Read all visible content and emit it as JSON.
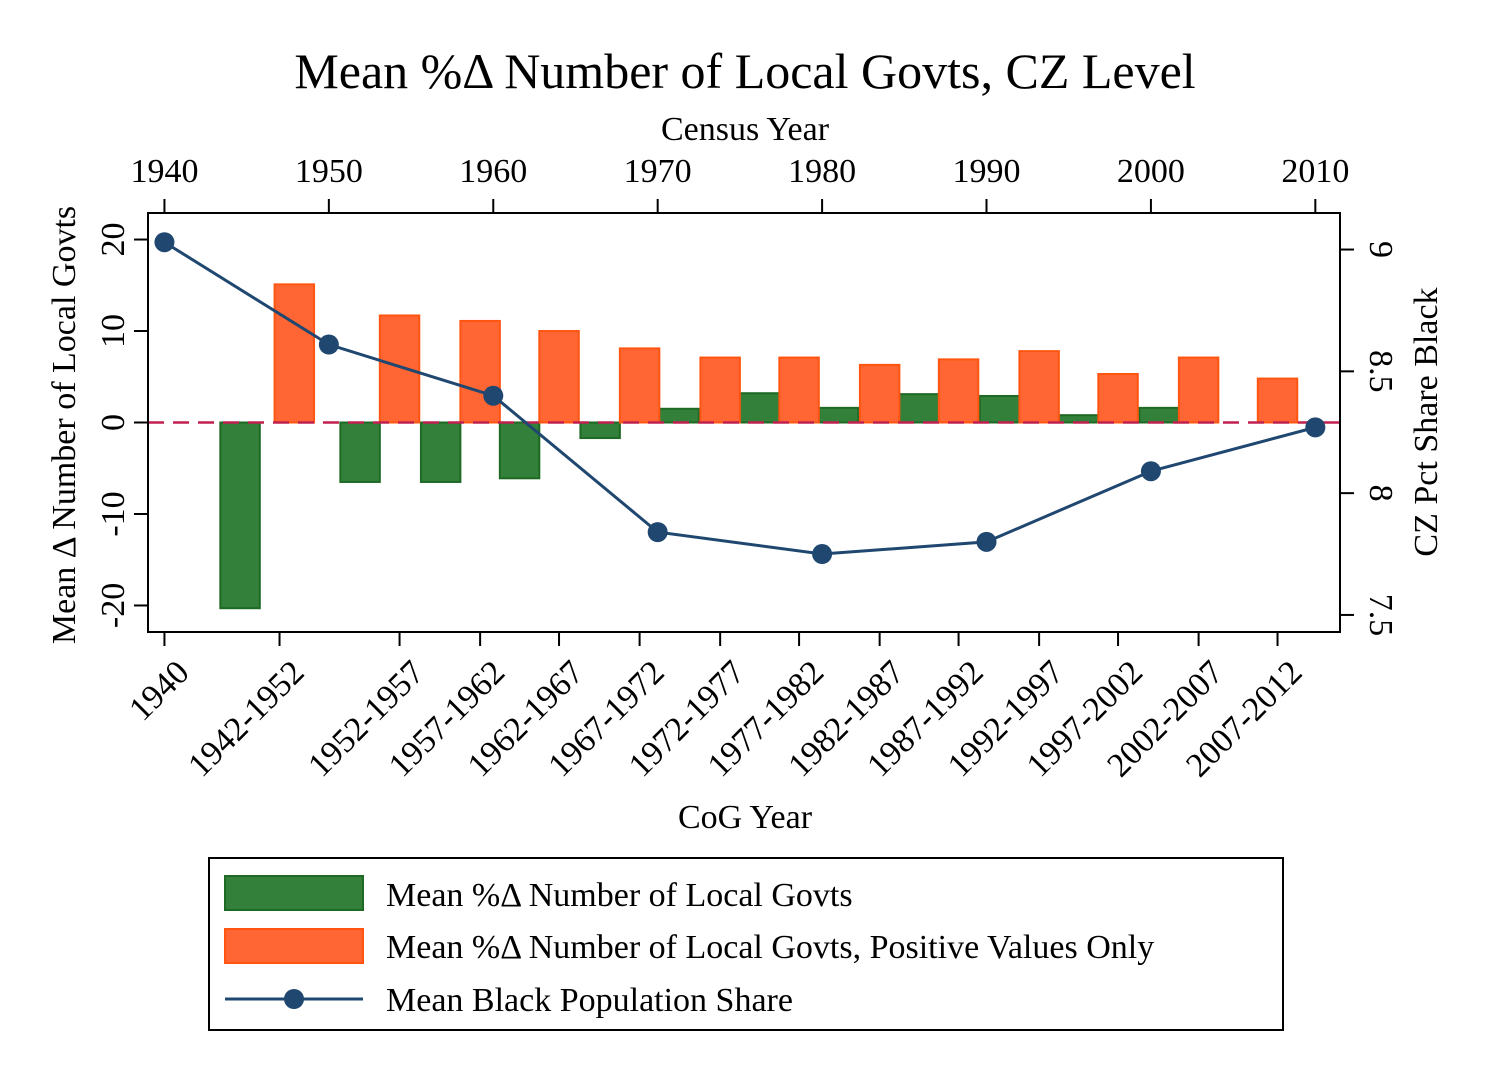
{
  "chart_data": {
    "type": "bar",
    "title": "Mean %Δ Number of Local Govts, CZ Level",
    "xlabel_bottom": "CoG Year",
    "xlabel_top": "Census Year",
    "ylabel_left": "Mean Δ Number of Local Govts",
    "ylabel_right": "CZ Pct Share Black",
    "categories": [
      "1940",
      "1942-1952",
      "1952-1957",
      "1957-1962",
      "1962-1967",
      "1967-1972",
      "1972-1977",
      "1977-1982",
      "1982-1987",
      "1987-1992",
      "1992-1997",
      "1997-2002",
      "2002-2007",
      "2007-2012"
    ],
    "category_positions": [
      1940,
      1947,
      1954.3,
      1959.2,
      1964.0,
      1968.9,
      1973.8,
      1978.6,
      1983.5,
      1988.3,
      1993.2,
      1998.0,
      2002.9,
      2007.7
    ],
    "bar_width_years": 2.4,
    "series": [
      {
        "name": "Mean %Δ Number of Local Govts",
        "axis": "left",
        "color": "#33803a",
        "x": [
          1944.6,
          1951.9,
          1956.8,
          1961.6,
          1966.5,
          1971.3,
          1976.2,
          1981.0,
          1985.9,
          1990.8,
          1995.6,
          2000.5
        ],
        "values": [
          -20.3,
          -6.5,
          -6.5,
          -6.1,
          -1.7,
          1.5,
          3.2,
          1.6,
          3.1,
          2.9,
          0.8,
          1.6
        ]
      },
      {
        "name": "Mean %Δ Number of Local Govts, Positive Values Only",
        "axis": "left",
        "color": "#ff6633",
        "x": [
          1947.9,
          1954.3,
          1959.2,
          1964.0,
          1968.9,
          1973.8,
          1978.6,
          1983.5,
          1988.3,
          1993.2,
          1998.0,
          2002.9,
          2007.7
        ],
        "values": [
          15.1,
          11.7,
          11.1,
          10.0,
          8.1,
          7.1,
          7.1,
          6.3,
          6.9,
          7.8,
          5.3,
          7.1,
          4.8
        ]
      },
      {
        "name": "Mean Black Population Share",
        "axis": "right",
        "type": "line",
        "color": "#1f4770",
        "x": [
          1940,
          1950,
          1960,
          1970,
          1980,
          1990,
          2000,
          2010
        ],
        "values": [
          9.03,
          8.61,
          8.4,
          7.84,
          7.75,
          7.8,
          8.09,
          8.27
        ]
      }
    ],
    "reference_line": {
      "axis": "left",
      "value": 0,
      "style": "dashed",
      "color": "#c0204f"
    },
    "xlim": [
      1939,
      2011.5
    ],
    "ylim_left": [
      -22.9,
      22.9
    ],
    "yticks_left": [
      -20,
      -10,
      0,
      10,
      20
    ],
    "ytick_labels_left": [
      "-20",
      "-10",
      "0",
      "10",
      "20"
    ],
    "ylim_right": [
      7.43,
      9.15
    ],
    "yticks_right": [
      7.5,
      8,
      8.5,
      9
    ],
    "ytick_labels_right": [
      "7.5",
      "8",
      "8.5",
      "9"
    ],
    "xticks_top": [
      1940,
      1950,
      1960,
      1970,
      1980,
      1990,
      2000,
      2010
    ],
    "xtick_labels_top": [
      "1940",
      "1950",
      "1960",
      "1970",
      "1980",
      "1990",
      "2000",
      "2010"
    ],
    "grid": false,
    "legend_position": "bottom"
  }
}
